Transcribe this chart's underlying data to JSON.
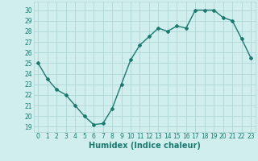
{
  "x": [
    0,
    1,
    2,
    3,
    4,
    5,
    6,
    7,
    8,
    9,
    10,
    11,
    12,
    13,
    14,
    15,
    16,
    17,
    18,
    19,
    20,
    21,
    22,
    23
  ],
  "y": [
    25.0,
    23.5,
    22.5,
    22.0,
    21.0,
    20.0,
    19.2,
    19.3,
    20.7,
    23.0,
    25.3,
    26.7,
    27.5,
    28.3,
    28.0,
    28.5,
    28.3,
    30.0,
    30.0,
    30.0,
    29.3,
    29.0,
    27.3,
    25.5
  ],
  "line_color": "#1a7a6e",
  "marker": "D",
  "marker_size": 2.0,
  "linewidth": 1.0,
  "xlabel": "Humidex (Indice chaleur)",
  "xlabel_fontsize": 7.0,
  "ylabel_ticks": [
    19,
    20,
    21,
    22,
    23,
    24,
    25,
    26,
    27,
    28,
    29,
    30
  ],
  "xtick_labels": [
    "0",
    "1",
    "2",
    "3",
    "4",
    "5",
    "6",
    "7",
    "8",
    "9",
    "10",
    "11",
    "12",
    "13",
    "14",
    "15",
    "16",
    "17",
    "18",
    "19",
    "20",
    "21",
    "22",
    "23"
  ],
  "ylim": [
    18.5,
    30.8
  ],
  "xlim": [
    -0.5,
    23.5
  ],
  "bg_color": "#d0eeee",
  "grid_color": "#b0d4d4",
  "tick_color": "#1a7a6e",
  "tick_fontsize": 5.5
}
